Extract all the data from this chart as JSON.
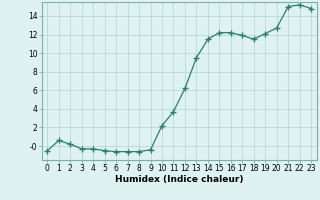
{
  "x": [
    0,
    1,
    2,
    3,
    4,
    5,
    6,
    7,
    8,
    9,
    10,
    11,
    12,
    13,
    14,
    15,
    16,
    17,
    18,
    19,
    20,
    21,
    22,
    23
  ],
  "y": [
    -0.5,
    0.6,
    0.2,
    -0.3,
    -0.3,
    -0.5,
    -0.6,
    -0.6,
    -0.6,
    -0.4,
    2.2,
    3.7,
    6.2,
    9.5,
    11.5,
    12.2,
    12.2,
    11.9,
    11.5,
    12.1,
    12.7,
    15.0,
    15.2,
    14.8
  ],
  "line_color": "#2e7d6e",
  "marker": "+",
  "marker_size": 4,
  "background_color": "#dff2f2",
  "grid_color": "#b8d8d8",
  "xlabel": "Humidex (Indice chaleur)",
  "xlim": [
    -0.5,
    23.5
  ],
  "ylim": [
    -1.5,
    15.5
  ],
  "xticks": [
    0,
    1,
    2,
    3,
    4,
    5,
    6,
    7,
    8,
    9,
    10,
    11,
    12,
    13,
    14,
    15,
    16,
    17,
    18,
    19,
    20,
    21,
    22,
    23
  ],
  "yticks": [
    0,
    2,
    4,
    6,
    8,
    10,
    12,
    14
  ],
  "ytick_labels": [
    "-0",
    "2",
    "4",
    "6",
    "8",
    "10",
    "12",
    "14"
  ],
  "tick_label_size": 5.5,
  "xlabel_size": 6.5,
  "line_width": 0.9,
  "marker_color": "#2e7d6e",
  "spine_color": "#7ab0a8"
}
